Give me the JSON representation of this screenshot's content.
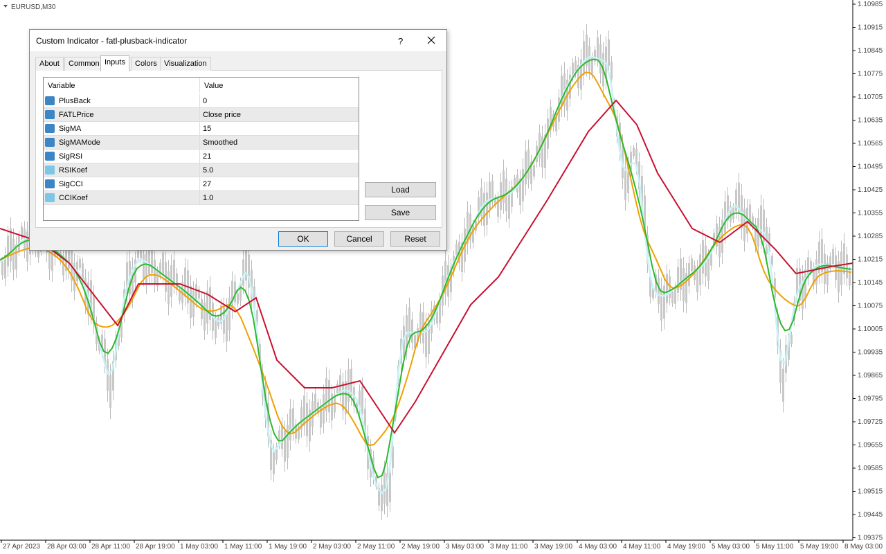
{
  "chart_header": {
    "symbol": "EURUSD,M30"
  },
  "price_axis": [
    "1.10985",
    "1.10915",
    "1.10845",
    "1.10775",
    "1.10705",
    "1.10635",
    "1.10565",
    "1.10495",
    "1.10425",
    "1.10355",
    "1.10285",
    "1.10215",
    "1.10145",
    "1.10075",
    "1.10005",
    "1.09935",
    "1.09865",
    "1.09795",
    "1.09725",
    "1.09655",
    "1.09585",
    "1.09515",
    "1.09445",
    "1.09375"
  ],
  "time_axis": [
    "27 Apr 2023",
    "28 Apr 03:00",
    "28 Apr 11:00",
    "28 Apr 19:00",
    "1 May 03:00",
    "1 May 11:00",
    "1 May 19:00",
    "2 May 03:00",
    "2 May 11:00",
    "2 May 19:00",
    "3 May 03:00",
    "3 May 11:00",
    "3 May 19:00",
    "4 May 03:00",
    "4 May 11:00",
    "4 May 19:00",
    "5 May 03:00",
    "5 May 11:00",
    "5 May 19:00",
    "8 May 03:00"
  ],
  "dialog": {
    "title": "Custom Indicator - fatl-plusback-indicator",
    "help": "?",
    "tabs": [
      "About",
      "Common",
      "Inputs",
      "Colors",
      "Visualization"
    ],
    "table": {
      "header": [
        "Variable",
        "Value"
      ],
      "rows": [
        [
          "PlusBack",
          "0"
        ],
        [
          "FATLPrice",
          "Close price"
        ],
        [
          "SigMA",
          "15"
        ],
        [
          "SigMAMode",
          "Smoothed"
        ],
        [
          "SigRSI",
          "21"
        ],
        [
          "RSIKoef",
          "5.0"
        ],
        [
          "SigCCI",
          "27"
        ],
        [
          "CCIKoef",
          "1.0"
        ]
      ]
    },
    "side_buttons": [
      "Load",
      "Save"
    ],
    "buttons": [
      "OK",
      "Cancel",
      "Reset"
    ]
  }
}
